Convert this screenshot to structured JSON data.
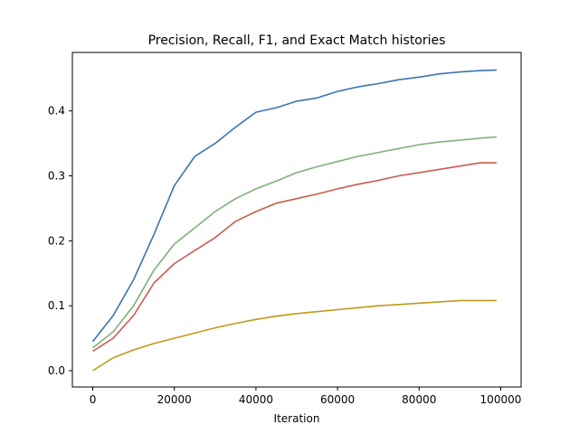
{
  "chart_data": {
    "type": "line",
    "title": "Precision, Recall, F1, and Exact Match histories",
    "xlabel": "Iteration",
    "ylabel": "",
    "xlim": [
      -5000,
      105000
    ],
    "ylim": [
      -0.025,
      0.49
    ],
    "x_ticks": [
      0,
      20000,
      40000,
      60000,
      80000,
      100000
    ],
    "y_ticks": [
      0.0,
      0.1,
      0.2,
      0.3,
      0.4
    ],
    "x_tick_labels": [
      "0",
      "20000",
      "40000",
      "60000",
      "80000",
      "100000"
    ],
    "y_tick_labels": [
      "0.0",
      "0.1",
      "0.2",
      "0.3",
      "0.4"
    ],
    "legend": "none",
    "grid": false,
    "series": [
      {
        "color": "#3a74b4",
        "x": [
          0,
          5000,
          10000,
          15000,
          20000,
          25000,
          30000,
          35000,
          40000,
          45000,
          50000,
          55000,
          60000,
          65000,
          70000,
          75000,
          80000,
          85000,
          90000,
          95000,
          99000
        ],
        "values": [
          0.045,
          0.085,
          0.14,
          0.21,
          0.285,
          0.33,
          0.35,
          0.375,
          0.398,
          0.405,
          0.415,
          0.42,
          0.43,
          0.437,
          0.442,
          0.448,
          0.452,
          0.457,
          0.46,
          0.462,
          0.463
        ]
      },
      {
        "color": "#7fb07a",
        "x": [
          0,
          5000,
          10000,
          15000,
          20000,
          25000,
          30000,
          35000,
          40000,
          45000,
          50000,
          55000,
          60000,
          65000,
          70000,
          75000,
          80000,
          85000,
          90000,
          95000,
          99000
        ],
        "values": [
          0.035,
          0.06,
          0.1,
          0.155,
          0.195,
          0.22,
          0.245,
          0.265,
          0.28,
          0.292,
          0.305,
          0.314,
          0.322,
          0.33,
          0.336,
          0.342,
          0.348,
          0.352,
          0.355,
          0.358,
          0.36
        ]
      },
      {
        "color": "#cc5a4f",
        "x": [
          0,
          5000,
          10000,
          15000,
          20000,
          25000,
          30000,
          35000,
          40000,
          45000,
          50000,
          55000,
          60000,
          65000,
          70000,
          75000,
          80000,
          85000,
          90000,
          95000,
          99000
        ],
        "values": [
          0.03,
          0.05,
          0.085,
          0.135,
          0.165,
          0.185,
          0.205,
          0.23,
          0.245,
          0.258,
          0.265,
          0.272,
          0.28,
          0.287,
          0.293,
          0.3,
          0.305,
          0.31,
          0.315,
          0.32,
          0.32
        ]
      },
      {
        "color": "#bf9a1c",
        "x": [
          0,
          5000,
          10000,
          15000,
          20000,
          25000,
          30000,
          35000,
          40000,
          45000,
          50000,
          55000,
          60000,
          65000,
          70000,
          75000,
          80000,
          85000,
          90000,
          95000,
          99000
        ],
        "values": [
          0.0,
          0.02,
          0.032,
          0.042,
          0.05,
          0.058,
          0.066,
          0.073,
          0.079,
          0.084,
          0.088,
          0.091,
          0.094,
          0.097,
          0.1,
          0.102,
          0.104,
          0.106,
          0.108,
          0.108,
          0.108
        ]
      }
    ]
  }
}
